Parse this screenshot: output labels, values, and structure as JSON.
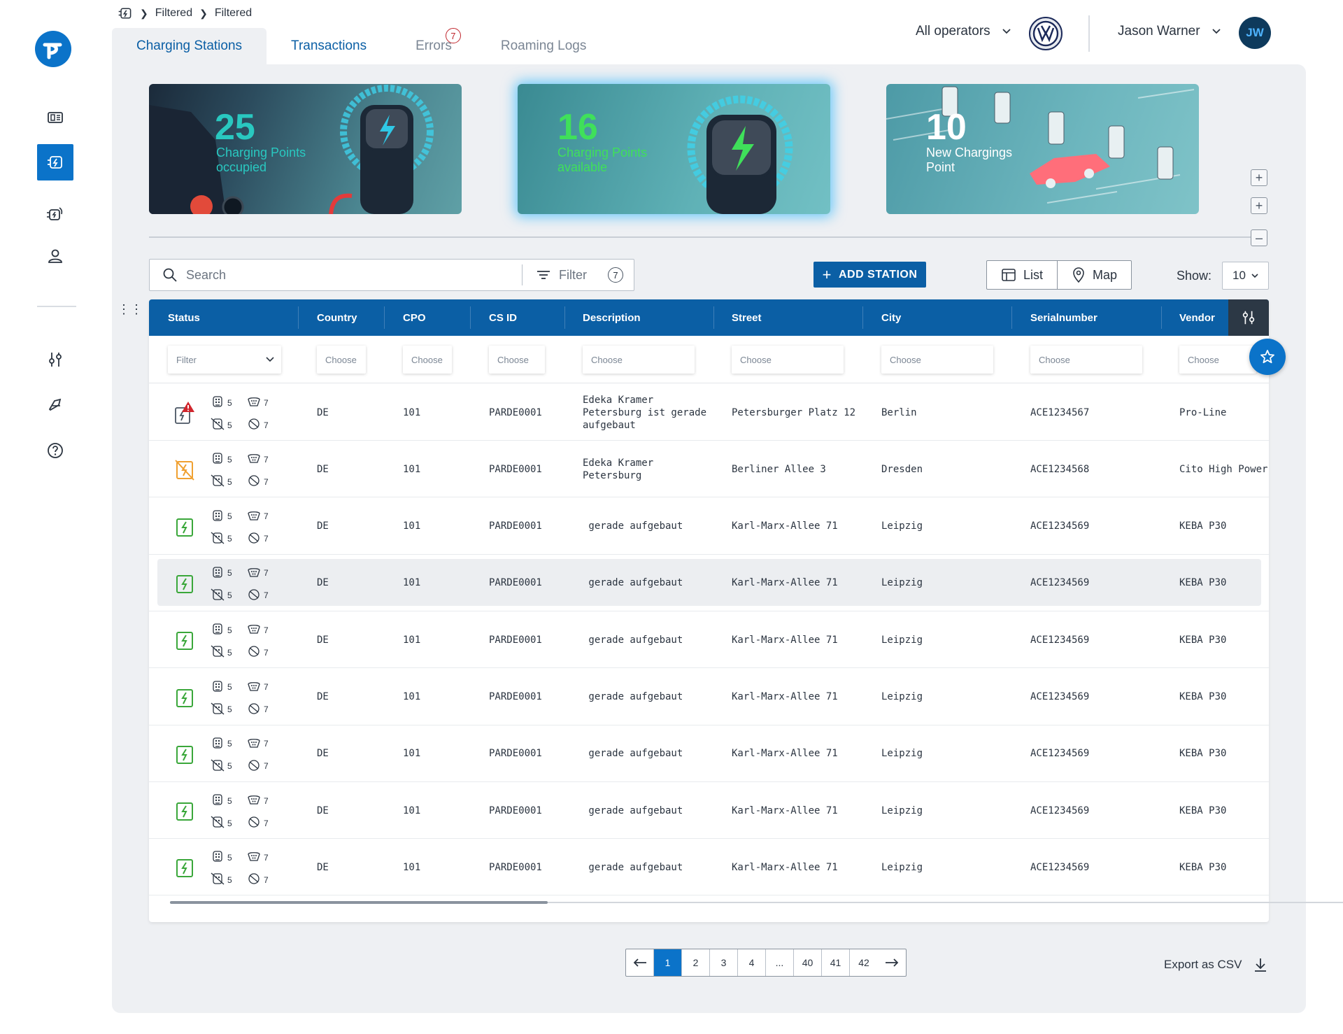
{
  "breadcrumb": [
    "Filtered",
    "Filtered"
  ],
  "tabs": [
    {
      "label": "Charging Stations"
    },
    {
      "label": "Transactions"
    },
    {
      "label": "Errors",
      "badge": "7"
    },
    {
      "label": "Roaming Logs"
    }
  ],
  "header": {
    "operator": "All operators",
    "user": "Jason Warner",
    "avatar_initials": "JW",
    "vw_logo": "VW"
  },
  "cards": [
    {
      "number": "25",
      "label_line1": "Charging Points",
      "label_line2": "occupied"
    },
    {
      "number": "16",
      "label_line1": "Charging Points",
      "label_line2": "available"
    },
    {
      "number": "10",
      "label_line1": "New Chargings",
      "label_line2": "Point"
    }
  ],
  "toolbar": {
    "search_placeholder": "Search",
    "filter_label": "Filter",
    "filter_count": "7",
    "add_station": "ADD STATION",
    "view_list": "List",
    "view_map": "Map",
    "show_label": "Show:",
    "show_value": "10"
  },
  "columns": [
    "Status",
    "Country",
    "CPO",
    "CS ID",
    "Description",
    "Street",
    "City",
    "Serialnumber",
    "Vendor"
  ],
  "filters": {
    "status": "Filter",
    "choose": "Choose"
  },
  "rows": [
    {
      "status": "error",
      "conn_a": "5",
      "conn_b": "5",
      "conn_c": "7",
      "conn_d": "7",
      "country": "DE",
      "cpo": "101",
      "csid": "PARDE0001",
      "desc": [
        "Edeka Kramer",
        "Petersburg ist gerade",
        "aufgebaut"
      ],
      "street": "Petersburger Platz 12",
      "city": "Berlin",
      "serial": "ACE1234567",
      "vendor": "Pro-Line"
    },
    {
      "status": "warning",
      "conn_a": "5",
      "conn_b": "5",
      "conn_c": "7",
      "conn_d": "7",
      "country": "DE",
      "cpo": "101",
      "csid": "PARDE0001",
      "desc": [
        "Edeka Kramer",
        "Petersburg"
      ],
      "street": "Berliner Allee 3",
      "city": "Dresden",
      "serial": "ACE1234568",
      "vendor": "Cito High Power"
    },
    {
      "status": "ok",
      "conn_a": "5",
      "conn_b": "5",
      "conn_c": "7",
      "conn_d": "7",
      "country": "DE",
      "cpo": "101",
      "csid": "PARDE0001",
      "desc": [
        " gerade aufgebaut"
      ],
      "street": "Karl-Marx-Allee 71",
      "city": "Leipzig",
      "serial": "ACE1234569",
      "vendor": "KEBA P30"
    },
    {
      "status": "ok",
      "conn_a": "5",
      "conn_b": "5",
      "conn_c": "7",
      "conn_d": "7",
      "country": "DE",
      "cpo": "101",
      "csid": "PARDE0001",
      "desc": [
        " gerade aufgebaut"
      ],
      "street": "Karl-Marx-Allee 71",
      "city": "Leipzig",
      "serial": "ACE1234569",
      "vendor": "KEBA P30"
    },
    {
      "status": "ok",
      "conn_a": "5",
      "conn_b": "5",
      "conn_c": "7",
      "conn_d": "7",
      "country": "DE",
      "cpo": "101",
      "csid": "PARDE0001",
      "desc": [
        " gerade aufgebaut"
      ],
      "street": "Karl-Marx-Allee 71",
      "city": "Leipzig",
      "serial": "ACE1234569",
      "vendor": "KEBA P30"
    },
    {
      "status": "ok",
      "conn_a": "5",
      "conn_b": "5",
      "conn_c": "7",
      "conn_d": "7",
      "country": "DE",
      "cpo": "101",
      "csid": "PARDE0001",
      "desc": [
        " gerade aufgebaut"
      ],
      "street": "Karl-Marx-Allee 71",
      "city": "Leipzig",
      "serial": "ACE1234569",
      "vendor": "KEBA P30"
    },
    {
      "status": "ok",
      "conn_a": "5",
      "conn_b": "5",
      "conn_c": "7",
      "conn_d": "7",
      "country": "DE",
      "cpo": "101",
      "csid": "PARDE0001",
      "desc": [
        " gerade aufgebaut"
      ],
      "street": "Karl-Marx-Allee 71",
      "city": "Leipzig",
      "serial": "ACE1234569",
      "vendor": "KEBA P30"
    },
    {
      "status": "ok",
      "conn_a": "5",
      "conn_b": "5",
      "conn_c": "7",
      "conn_d": "7",
      "country": "DE",
      "cpo": "101",
      "csid": "PARDE0001",
      "desc": [
        " gerade aufgebaut"
      ],
      "street": "Karl-Marx-Allee 71",
      "city": "Leipzig",
      "serial": "ACE1234569",
      "vendor": "KEBA P30"
    },
    {
      "status": "ok",
      "conn_a": "5",
      "conn_b": "5",
      "conn_c": "7",
      "conn_d": "7",
      "country": "DE",
      "cpo": "101",
      "csid": "PARDE0001",
      "desc": [
        " gerade aufgebaut"
      ],
      "street": "Karl-Marx-Allee 71",
      "city": "Leipzig",
      "serial": "ACE1234569",
      "vendor": "KEBA P30"
    }
  ],
  "highlighted_row": 3,
  "pagination": {
    "pages": [
      "1",
      "2",
      "3",
      "4",
      "...",
      "40",
      "41",
      "42"
    ],
    "active": "1"
  },
  "export_label": "Export as CSV",
  "colors": {
    "primary": "#0b5fa5",
    "accent": "#0b73c9",
    "ok": "#3aa73a",
    "warning": "#f0a030",
    "error": "#d0262d"
  }
}
